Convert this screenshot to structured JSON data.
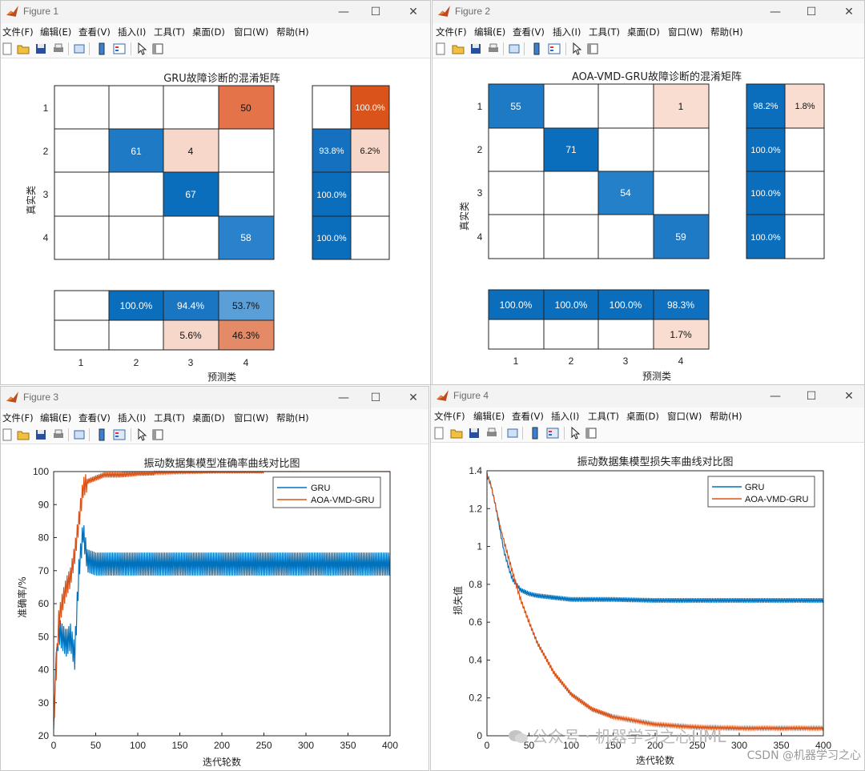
{
  "menu": [
    "文件(F)",
    "编辑(E)",
    "查看(V)",
    "插入(I)",
    "工具(T)",
    "桌面(D)",
    "窗口(W)",
    "帮助(H)"
  ],
  "figure1": {
    "window_title": "Figure 1",
    "title": "GRU故障诊断的混淆矩阵",
    "ylabel": "真实类",
    "xlabel": "预测类",
    "row_labels": [
      "1",
      "2",
      "3",
      "4"
    ],
    "col_labels": [
      "1",
      "2",
      "3",
      "4"
    ],
    "matrix": [
      [
        "",
        "",
        "",
        "50"
      ],
      [
        "",
        "61",
        "4",
        ""
      ],
      [
        "",
        "",
        "67",
        ""
      ],
      [
        "",
        "",
        "",
        "58"
      ]
    ],
    "row_summary": [
      [
        "",
        "100.0%"
      ],
      [
        "93.8%",
        "6.2%"
      ],
      [
        "100.0%",
        ""
      ],
      [
        "100.0%",
        ""
      ]
    ],
    "col_summary": [
      [
        "",
        "100.0%",
        "94.4%",
        "53.7%"
      ],
      [
        "",
        "",
        "5.6%",
        "46.3%"
      ]
    ]
  },
  "figure2": {
    "window_title": "Figure 2",
    "title": "AOA-VMD-GRU故障诊断的混淆矩阵",
    "ylabel": "真实类",
    "xlabel": "预测类",
    "row_labels": [
      "1",
      "2",
      "3",
      "4"
    ],
    "col_labels": [
      "1",
      "2",
      "3",
      "4"
    ],
    "matrix": [
      [
        "55",
        "",
        "",
        "1"
      ],
      [
        "",
        "71",
        "",
        ""
      ],
      [
        "",
        "",
        "54",
        ""
      ],
      [
        "",
        "",
        "",
        "59"
      ]
    ],
    "row_summary": [
      [
        "98.2%",
        "1.8%"
      ],
      [
        "100.0%",
        ""
      ],
      [
        "100.0%",
        ""
      ],
      [
        "100.0%",
        ""
      ]
    ],
    "col_summary": [
      [
        "100.0%",
        "100.0%",
        "100.0%",
        "98.3%"
      ],
      [
        "",
        "",
        "",
        "1.7%"
      ]
    ]
  },
  "figure3": {
    "window_title": "Figure 3",
    "chart_data": {
      "type": "line",
      "title": "振动数据集模型准确率曲线对比图",
      "xlabel": "迭代轮数",
      "ylabel": "准确率/%",
      "xlim": [
        0,
        400
      ],
      "ylim": [
        20,
        100
      ],
      "xticks": [
        "0",
        "50",
        "100",
        "150",
        "200",
        "250",
        "300",
        "350",
        "400"
      ],
      "yticks": [
        "20",
        "30",
        "40",
        "50",
        "60",
        "70",
        "80",
        "90",
        "100"
      ],
      "legend_position": "top-right",
      "grid": false,
      "series": [
        {
          "name": "GRU",
          "color": "#0072BD",
          "x": [
            0,
            3,
            6,
            10,
            15,
            20,
            25,
            30,
            35,
            40,
            50,
            100,
            200,
            300,
            400
          ],
          "y": [
            22,
            45,
            52,
            50,
            48,
            50,
            44,
            70,
            82,
            73,
            72,
            72,
            72,
            72,
            72
          ]
        },
        {
          "name": "AOA-VMD-GRU",
          "color": "#D95319",
          "x": [
            0,
            3,
            6,
            10,
            15,
            20,
            25,
            30,
            35,
            40,
            50,
            60,
            80,
            100,
            150,
            200,
            250,
            300,
            400
          ],
          "y": [
            23,
            40,
            55,
            60,
            65,
            68,
            75,
            85,
            95,
            97,
            98,
            99,
            99,
            99.5,
            99.8,
            100,
            100,
            100,
            100
          ]
        }
      ]
    }
  },
  "figure4": {
    "window_title": "Figure 4",
    "chart_data": {
      "type": "line",
      "title": "振动数据集模型损失率曲线对比图",
      "xlabel": "迭代轮数",
      "ylabel": "损失值",
      "xlim": [
        0,
        400
      ],
      "ylim": [
        0,
        1.4
      ],
      "xticks": [
        "0",
        "50",
        "100",
        "150",
        "200",
        "250",
        "300",
        "350",
        "400"
      ],
      "yticks": [
        "0",
        "0.2",
        "0.4",
        "0.6",
        "0.8",
        "1",
        "1.2",
        "1.4"
      ],
      "legend_position": "top-right",
      "grid": false,
      "series": [
        {
          "name": "GRU",
          "color": "#0072BD",
          "x": [
            0,
            5,
            10,
            15,
            20,
            25,
            30,
            40,
            50,
            60,
            80,
            100,
            150,
            200,
            300,
            400
          ],
          "y": [
            1.38,
            1.32,
            1.22,
            1.1,
            0.98,
            0.9,
            0.83,
            0.77,
            0.75,
            0.74,
            0.73,
            0.72,
            0.72,
            0.715,
            0.715,
            0.715
          ]
        },
        {
          "name": "AOA-VMD-GRU",
          "color": "#D95319",
          "x": [
            0,
            5,
            10,
            15,
            20,
            25,
            30,
            40,
            50,
            60,
            80,
            100,
            125,
            150,
            200,
            250,
            300,
            350,
            400
          ],
          "y": [
            1.38,
            1.32,
            1.22,
            1.12,
            1.03,
            0.95,
            0.87,
            0.72,
            0.6,
            0.49,
            0.33,
            0.22,
            0.14,
            0.1,
            0.06,
            0.045,
            0.04,
            0.04,
            0.04
          ]
        }
      ]
    }
  },
  "watermark": {
    "wechat": "公众号 · 机器学习之心HML",
    "csdn": "CSDN @机器学习之心"
  }
}
